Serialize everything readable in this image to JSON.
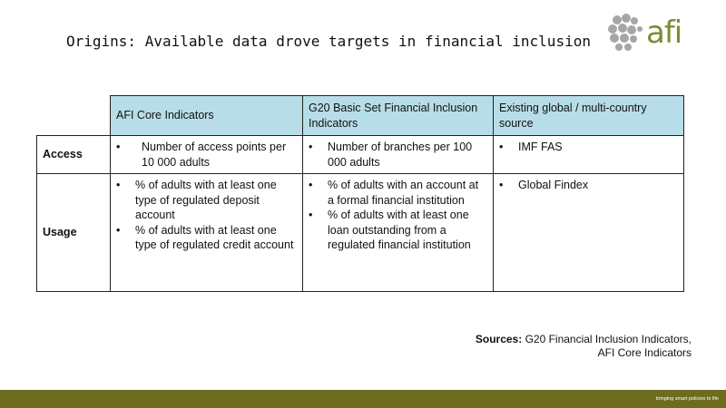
{
  "header": {
    "title": "Origins: Available data drove targets in financial inclusion"
  },
  "logo": {
    "text": "afi"
  },
  "table": {
    "columns": [
      "AFI Core Indicators",
      "G20 Basic Set Financial Inclusion Indicators",
      "Existing global / multi-country source"
    ],
    "rows": [
      {
        "label": "Access",
        "cells": [
          [
            "Number of access points per 10 000 adults"
          ],
          [
            "Number of branches per 100 000 adults"
          ],
          [
            "IMF FAS"
          ]
        ]
      },
      {
        "label": "Usage",
        "cells": [
          [
            "% of adults with at least one type of regulated deposit account",
            "% of adults with at least one type of regulated credit account"
          ],
          [
            "% of adults with an account at a formal financial institution",
            "% of adults with at least one loan outstanding from a regulated financial institution"
          ],
          [
            "Global Findex"
          ]
        ]
      }
    ]
  },
  "sources": {
    "label": "Sources:",
    "lines": [
      "G20 Financial Inclusion Indicators,",
      "AFI Core Indicators"
    ]
  },
  "footer": {
    "tagline": "bringing smart policies to life"
  }
}
